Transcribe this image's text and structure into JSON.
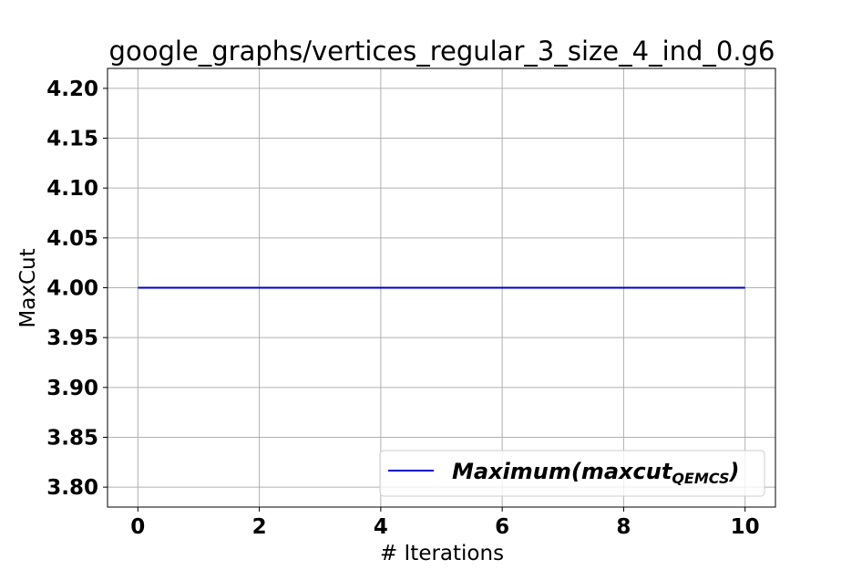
{
  "chart_data": {
    "type": "line",
    "title": "google_graphs/vertices_regular_3_size_4_ind_0.g6",
    "xlabel": "# Iterations",
    "ylabel": "MaxCut",
    "xlim": [
      -0.5,
      10.5
    ],
    "ylim": [
      3.78,
      4.22
    ],
    "xticks": [
      0,
      2,
      4,
      6,
      8,
      10
    ],
    "yticks": [
      3.8,
      3.85,
      3.9,
      3.95,
      4.0,
      4.05,
      4.1,
      4.15,
      4.2
    ],
    "grid": true,
    "legend_position": "bottom-right",
    "series": [
      {
        "name": "Maximum(maxcut",
        "name_subscript": "QEMCS",
        "name_suffix": ")",
        "color": "#0000cc",
        "x": [
          0,
          1,
          2,
          3,
          4,
          5,
          6,
          7,
          8,
          9,
          10
        ],
        "y": [
          4,
          4,
          4,
          4,
          4,
          4,
          4,
          4,
          4,
          4,
          4
        ]
      }
    ]
  }
}
